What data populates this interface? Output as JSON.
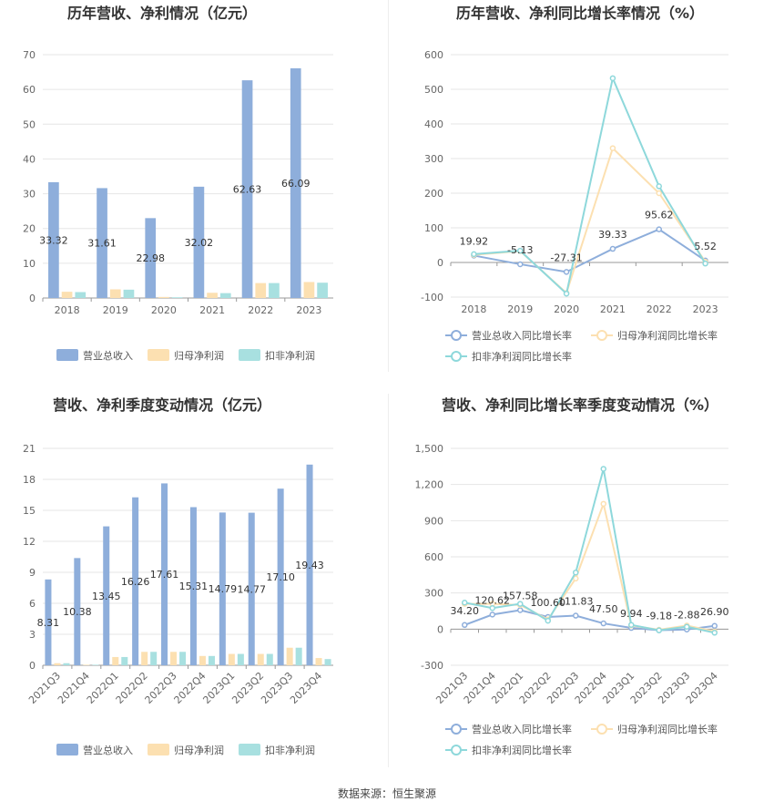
{
  "source_text": "数据来源：恒生聚源",
  "chart_data": [
    {
      "type": "bar",
      "title": "历年营收、净利情况（亿元）",
      "categories": [
        "2018",
        "2019",
        "2020",
        "2021",
        "2022",
        "2023"
      ],
      "ylim": [
        0,
        70
      ],
      "yticks": [
        0,
        10,
        20,
        30,
        40,
        50,
        60,
        70
      ],
      "series": [
        {
          "name": "营业总收入",
          "color": "#8EAEDB",
          "values": [
            33.32,
            31.61,
            22.98,
            32.02,
            62.63,
            66.09
          ],
          "labels": [
            "33.32",
            "31.61",
            "22.98",
            "32.02",
            "62.63",
            "66.09"
          ]
        },
        {
          "name": "归母净利润",
          "color": "#FCE0B1",
          "values": [
            1.8,
            2.5,
            0.3,
            1.5,
            4.3,
            4.6
          ]
        },
        {
          "name": "扣非净利润",
          "color": "#A8E0E0",
          "values": [
            1.7,
            2.4,
            0.2,
            1.4,
            4.3,
            4.4
          ]
        }
      ],
      "legend_position": "bottom",
      "grid": true
    },
    {
      "type": "line",
      "title": "历年营收、净利同比增长率情况（%）",
      "categories": [
        "2018",
        "2019",
        "2020",
        "2021",
        "2022",
        "2023"
      ],
      "ylim": [
        -100,
        600
      ],
      "yticks": [
        -100,
        0,
        100,
        200,
        300,
        400,
        500,
        600
      ],
      "series": [
        {
          "name": "营业总收入同比增长率",
          "color": "#8EAEDB",
          "values": [
            19.92,
            -5.13,
            -27.31,
            39.33,
            95.62,
            5.52
          ],
          "labels": [
            "19.92",
            "-5.13",
            "-27.31",
            "39.33",
            "95.62",
            "5.52"
          ]
        },
        {
          "name": "归母净利润同比增长率",
          "color": "#FCE0B1",
          "values": [
            22,
            33,
            -88,
            330,
            200,
            2
          ]
        },
        {
          "name": "扣非净利润同比增长率",
          "color": "#8ED8DB",
          "values": [
            24,
            34,
            -90,
            532,
            220,
            -3
          ]
        }
      ],
      "legend_position": "bottom",
      "grid": true
    },
    {
      "type": "bar",
      "title": "营收、净利季度变动情况（亿元）",
      "categories": [
        "2021Q3",
        "2021Q4",
        "2022Q1",
        "2022Q2",
        "2022Q3",
        "2022Q4",
        "2023Q1",
        "2023Q2",
        "2023Q3",
        "2023Q4"
      ],
      "ylim": [
        0,
        21
      ],
      "yticks": [
        0,
        3,
        6,
        9,
        12,
        15,
        18,
        21
      ],
      "series": [
        {
          "name": "营业总收入",
          "color": "#8EAEDB",
          "values": [
            8.31,
            10.38,
            13.45,
            16.26,
            17.61,
            15.31,
            14.79,
            14.77,
            17.1,
            19.43
          ],
          "labels": [
            "8.31",
            "10.38",
            "13.45",
            "16.26",
            "17.61",
            "15.31",
            "14.79",
            "14.77",
            "17.10",
            "19.43"
          ]
        },
        {
          "name": "归母净利润",
          "color": "#FCE0B1",
          "values": [
            0.2,
            0.05,
            0.8,
            1.3,
            1.3,
            0.9,
            1.1,
            1.1,
            1.7,
            0.7
          ]
        },
        {
          "name": "扣非净利润",
          "color": "#A8E0E0",
          "values": [
            0.2,
            0.05,
            0.8,
            1.3,
            1.3,
            0.9,
            1.1,
            1.1,
            1.7,
            0.6
          ]
        }
      ],
      "legend_position": "bottom",
      "grid": true
    },
    {
      "type": "line",
      "title": "营收、净利同比增长率季度变动情况（%）",
      "categories": [
        "2021Q3",
        "2021Q4",
        "2022Q1",
        "2022Q2",
        "2022Q3",
        "2022Q4",
        "2023Q1",
        "2023Q2",
        "2023Q3",
        "2023Q4"
      ],
      "ylim": [
        -300,
        1500
      ],
      "yticks": [
        -300,
        0,
        300,
        600,
        900,
        1200,
        1500
      ],
      "ytick_labels": [
        "-300",
        "0",
        "300",
        "600",
        "900",
        "1,200",
        "1,500"
      ],
      "series": [
        {
          "name": "营业总收入同比增长率",
          "color": "#8EAEDB",
          "values": [
            34.2,
            120.62,
            157.58,
            100.6,
            111.83,
            47.5,
            9.94,
            -9.18,
            -2.88,
            26.9
          ],
          "labels": [
            "34.20",
            "120.62",
            "157.58",
            "100.60",
            "111.83",
            "47.50",
            "9.94",
            "-9.18",
            "-2.88",
            "26.90"
          ]
        },
        {
          "name": "归母净利润同比增长率",
          "color": "#FCE0B1",
          "values": [
            210,
            210,
            200,
            80,
            420,
            1040,
            30,
            -5,
            30,
            -20
          ]
        },
        {
          "name": "扣非净利润同比增长率",
          "color": "#8ED8DB",
          "values": [
            220,
            175,
            210,
            70,
            470,
            1330,
            35,
            -10,
            20,
            -30
          ]
        }
      ],
      "legend_position": "bottom",
      "grid": true
    }
  ]
}
